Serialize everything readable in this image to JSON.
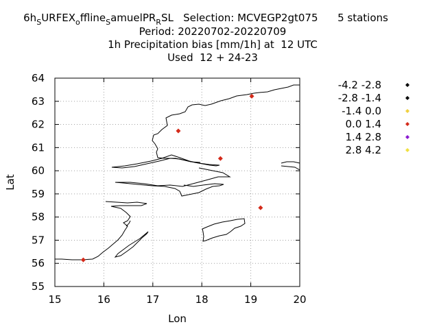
{
  "title": {
    "line1_parts": [
      {
        "text": "6h",
        "sub": false
      },
      {
        "text": "S",
        "sub": true
      },
      {
        "text": "URFEX",
        "sub": false
      },
      {
        "text": "o",
        "sub": true
      },
      {
        "text": "ffline",
        "sub": false
      },
      {
        "text": "S",
        "sub": true
      },
      {
        "text": "amuelPR",
        "sub": false
      },
      {
        "text": "R",
        "sub": true
      },
      {
        "text": "SL   Selection: MCVEGP2gt075      5 stations",
        "sub": false
      }
    ],
    "line2": "Period: 20220702-20220709",
    "line3": "1h Precipitation bias [mm/1h] at  12 UTC",
    "line4": "Used  12 + 24-23"
  },
  "chart_data": {
    "type": "scatter",
    "xlabel": "Lon",
    "ylabel": "Lat",
    "xlim": [
      15,
      20
    ],
    "ylim": [
      55,
      64
    ],
    "xticks": [
      "15",
      "16",
      "17",
      "18",
      "19",
      "20"
    ],
    "yticks": [
      "55",
      "56",
      "57",
      "58",
      "59",
      "60",
      "61",
      "62",
      "63",
      "64"
    ],
    "grid": true,
    "legend_position": "right",
    "legend": [
      {
        "label": "-4.2 -2.8",
        "color": "#000000"
      },
      {
        "label": "-2.8 -1.4",
        "color": "#000000"
      },
      {
        "label": "-1.4 0.0",
        "color": "#f0d040"
      },
      {
        "label": "0.0 1.4",
        "color": "#d42a1a"
      },
      {
        "label": "1.4 2.8",
        "color": "#8a1ad0"
      },
      {
        "label": "2.8 4.2",
        "color": "#f0e040"
      }
    ],
    "points": [
      {
        "lon": 15.58,
        "lat": 56.15,
        "class": "0.0 1.4"
      },
      {
        "lon": 17.52,
        "lat": 61.72,
        "class": "0.0 1.4"
      },
      {
        "lon": 18.38,
        "lat": 60.53,
        "class": "0.0 1.4"
      },
      {
        "lon": 19.02,
        "lat": 63.22,
        "class": "0.0 1.4"
      },
      {
        "lon": 19.2,
        "lat": 58.4,
        "class": "0.0 1.4"
      }
    ]
  }
}
